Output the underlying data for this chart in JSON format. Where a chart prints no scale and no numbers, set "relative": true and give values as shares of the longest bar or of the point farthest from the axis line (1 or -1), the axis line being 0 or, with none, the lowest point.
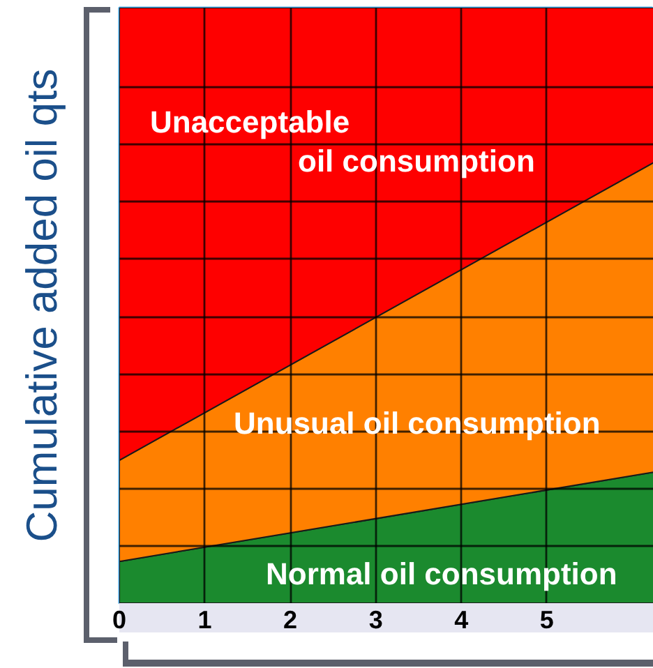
{
  "chart_data": {
    "type": "area",
    "stacked": true,
    "relative": true,
    "ylabel": "Cumulative added oil qts",
    "xlim": [
      0,
      6.25
    ],
    "xticks": [
      0,
      1,
      2,
      3,
      4,
      5
    ],
    "grid": true,
    "x": [
      0,
      6.25
    ],
    "series": [
      {
        "name": "Normal oil consumption",
        "color": "#1b8a2e",
        "values": [
          0.07,
          0.22
        ]
      },
      {
        "name": "Unusual oil consumption",
        "color": "#ff8000",
        "values": [
          0.17,
          0.52
        ]
      },
      {
        "name": "Unacceptable\noil consumption",
        "color": "#fe0000",
        "values": [
          0.76,
          0.26
        ]
      }
    ]
  }
}
